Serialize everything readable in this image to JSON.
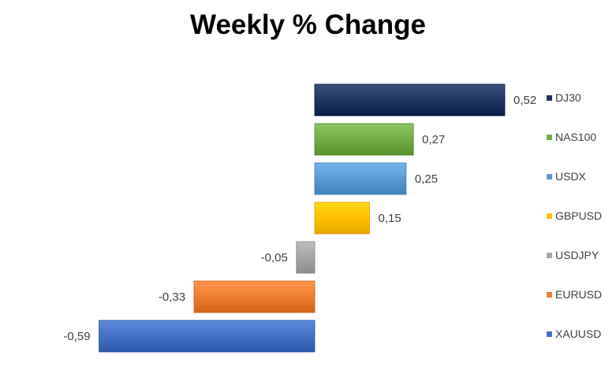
{
  "chart_data": {
    "type": "bar",
    "orientation": "horizontal",
    "title": "Weekly % Change",
    "categories": [
      "DJ30",
      "NAS100",
      "USDX",
      "GBPUSD",
      "USDJPY",
      "EURUSD",
      "XAUUSD"
    ],
    "values": [
      0.52,
      0.27,
      0.25,
      0.15,
      -0.05,
      -0.33,
      -0.59
    ],
    "value_labels": [
      "0,52",
      "0,27",
      "0,25",
      "0,15",
      "-0,05",
      "-0,33",
      "-0,59"
    ],
    "colors": [
      "#203864",
      "#70AD47",
      "#5B9BD5",
      "#FFC000",
      "#A5A5A5",
      "#ED7D31",
      "#4472C4"
    ],
    "xlim": [
      -0.59,
      0.52
    ],
    "grid": false,
    "axis_visible": false,
    "legend_position": "right"
  }
}
